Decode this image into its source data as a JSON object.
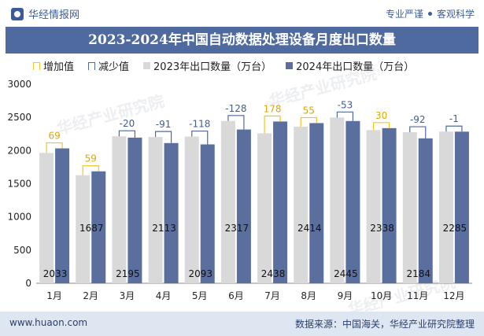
{
  "header": {
    "brand": "华经情报网",
    "tag1": "专业严谨",
    "tag2": "客观科学"
  },
  "title": "2023-2024年中国自动数据处理设备月度出口数量",
  "legend": {
    "increase": "增加值",
    "decrease": "减少值",
    "s2023": "2023年出口数量（万台）",
    "s2024": "2024年出口数量（万台）"
  },
  "footer": {
    "site": "www.huaon.com",
    "source": "数据来源：中国海关，华经产业研究院整理"
  },
  "watermark": "华经产业研究院",
  "chart_data": {
    "type": "bar",
    "title": "2023-2024年中国自动数据处理设备月度出口数量",
    "categories": [
      "1月",
      "2月",
      "3月",
      "4月",
      "5月",
      "6月",
      "7月",
      "8月",
      "9月",
      "10月",
      "11月",
      "12月"
    ],
    "ylim": [
      0,
      3000
    ],
    "yticks": [
      0,
      500,
      1000,
      1500,
      2000,
      2500,
      3000
    ],
    "series": [
      {
        "name": "2023年出口数量（万台）",
        "values": [
          1964,
          1628,
          2215,
          2204,
          2211,
          2445,
          2260,
          2359,
          2498,
          2308,
          2276,
          2286
        ]
      },
      {
        "name": "2024年出口数量（万台）",
        "values": [
          2033,
          1687,
          2195,
          2113,
          2093,
          2317,
          2438,
          2414,
          2445,
          2338,
          2184,
          2285
        ]
      }
    ],
    "diffs": [
      69,
      59,
      -20,
      -91,
      -118,
      -128,
      178,
      55,
      -53,
      30,
      -92,
      -1
    ],
    "diff_labels": [
      "69",
      "59",
      "-20",
      "-91",
      "-118",
      "-128",
      "178",
      "55",
      "-53",
      "30",
      "-92",
      "-1"
    ],
    "value_labels": [
      "2033",
      "1687",
      "2195",
      "2113",
      "2093",
      "2317",
      "2438",
      "2414",
      "2445",
      "2338",
      "2184",
      "2285"
    ],
    "colors": {
      "s2023": "#d9d9d9",
      "s2024": "#5b6f9e",
      "increase": "#f5c323",
      "decrease": "#4e6a9f"
    },
    "grid": true,
    "legend_position": "top"
  }
}
